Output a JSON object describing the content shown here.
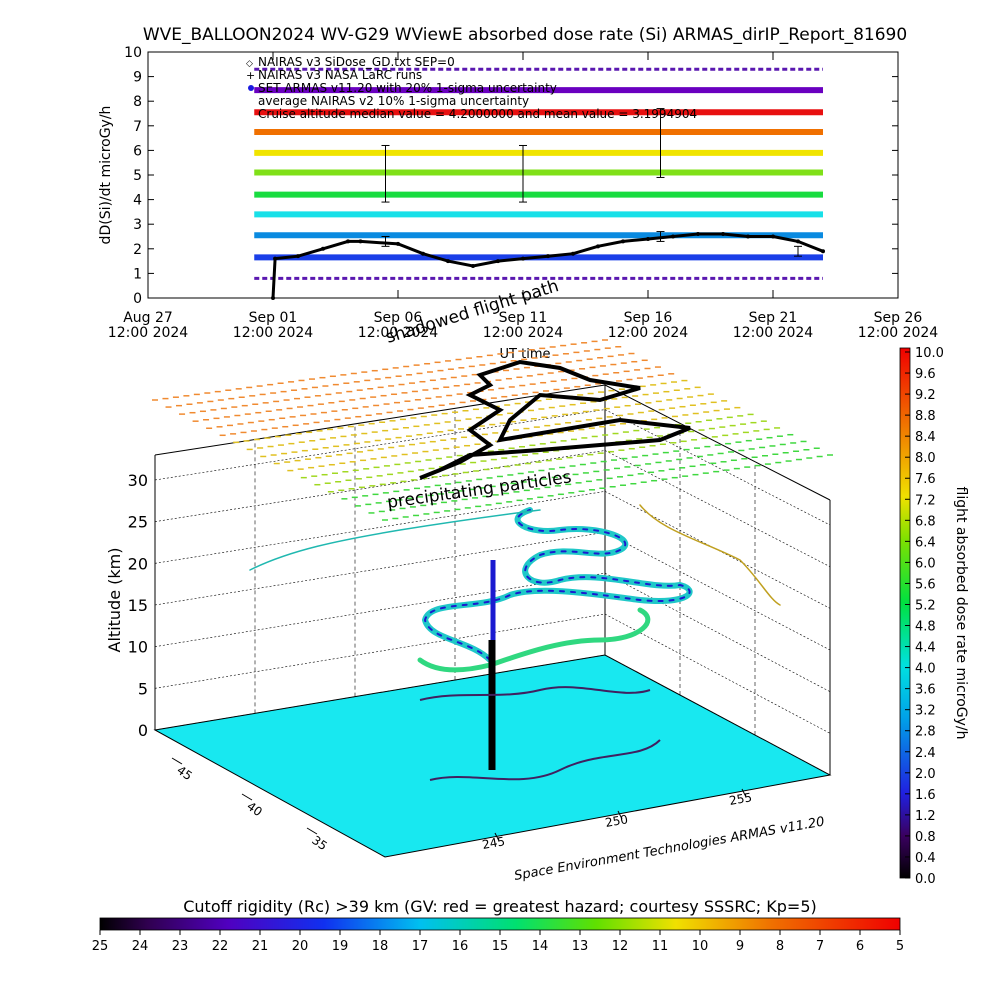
{
  "title": "WVE_BALLOON2024 WV-G29 WViewE absorbed dose rate (Si) ARMAS_dirIP_Report_81690",
  "timeseries": {
    "ylabel": "dD(Si)/dt microGy/h",
    "xlabel": "UT time",
    "ylim": [
      0,
      10
    ],
    "yticks": [
      "0",
      "1",
      "2",
      "3",
      "4",
      "5",
      "6",
      "7",
      "8",
      "9",
      "10"
    ],
    "xticks": [
      {
        "line1": "Aug 27",
        "line2": "12:00 2024"
      },
      {
        "line1": "Sep 01",
        "line2": "12:00 2024"
      },
      {
        "line1": "Sep 06",
        "line2": "12:00 2024"
      },
      {
        "line1": "Sep 11",
        "line2": "12:00 2024"
      },
      {
        "line1": "Sep 16",
        "line2": "12:00 2024"
      },
      {
        "line1": "Sep 21",
        "line2": "12:00 2024"
      },
      {
        "line1": "Sep 26",
        "line2": "12:00 2024"
      }
    ],
    "legend": [
      "NAIRAS v3 SiDose_GD.txt SEP=0",
      "NAIRAS v3 NASA LaRC runs",
      "SET ARMAS v11.20 with 20% 1-sigma uncertainty",
      "average NAIRAS v2 10% 1-sigma uncertainty",
      "Cruise altitude median value = 4.2000000 and mean value = 3.1994904"
    ],
    "colors": {
      "band_colors": [
        "#7a00c8",
        "#1a3fe8",
        "#0a8ae0",
        "#18e0e8",
        "#18dc40",
        "#80e018",
        "#f0e400",
        "#f07000",
        "#e81010",
        "#6a00c0"
      ],
      "dose_line": "#000000"
    }
  },
  "chart_data": {
    "type": "scatter",
    "title": "WVE_BALLOON2024 WV-G29 WViewE absorbed dose rate (Si) ARMAS_dirIP_Report_81690",
    "xlabel": "UT time",
    "ylabel": "dD(Si)/dt microGy/h",
    "ylim": [
      0,
      10
    ],
    "xlim": [
      "2024-08-27 12:00",
      "2024-09-26 12:00"
    ],
    "series": [
      {
        "name": "SET ARMAS v11.20 with 20% 1-sigma uncertainty",
        "x": [
          "2024-09-01 12:00",
          "2024-09-01 14:00",
          "2024-09-02 12:00",
          "2024-09-03 12:00",
          "2024-09-04 12:00",
          "2024-09-05 00:00",
          "2024-09-06 12:00",
          "2024-09-07 12:00",
          "2024-09-08 12:00",
          "2024-09-09 12:00",
          "2024-09-10 12:00",
          "2024-09-11 12:00",
          "2024-09-12 12:00",
          "2024-09-13 12:00",
          "2024-09-14 12:00",
          "2024-09-15 12:00",
          "2024-09-16 12:00",
          "2024-09-17 12:00",
          "2024-09-18 12:00",
          "2024-09-19 12:00",
          "2024-09-20 12:00",
          "2024-09-21 12:00",
          "2024-09-22 12:00",
          "2024-09-23 12:00"
        ],
        "y": [
          0.0,
          1.6,
          1.7,
          2.0,
          2.3,
          2.3,
          2.2,
          1.8,
          1.5,
          1.3,
          1.5,
          1.6,
          1.7,
          1.8,
          2.1,
          2.3,
          2.4,
          2.5,
          2.6,
          2.6,
          2.5,
          2.5,
          2.3,
          1.9
        ]
      }
    ],
    "bands": [
      0.8,
      1.65,
      2.55,
      3.4,
      4.2,
      5.1,
      5.9,
      6.75,
      7.55,
      8.45,
      9.3
    ],
    "error_bars": [
      {
        "x": "2024-09-06 00:00",
        "y": 5.1,
        "low": 3.9,
        "high": 6.2
      },
      {
        "x": "2024-09-11 12:00",
        "y": 5.1,
        "low": 3.9,
        "high": 6.2
      },
      {
        "x": "2024-09-17 00:00",
        "y": 6.3,
        "low": 4.9,
        "high": 7.7
      },
      {
        "x": "2024-09-06 00:00",
        "y": 2.3,
        "low": 2.1,
        "high": 2.5
      },
      {
        "x": "2024-09-17 00:00",
        "y": 2.5,
        "low": 2.3,
        "high": 2.7
      },
      {
        "x": "2024-09-22 12:00",
        "y": 1.9,
        "low": 1.7,
        "high": 2.1
      }
    ]
  },
  "globe": {
    "zlabel": "Altitude (km)",
    "zticks": [
      "0",
      "5",
      "10",
      "15",
      "20",
      "25",
      "30"
    ],
    "lat_ticks": [
      "45",
      "40",
      "35"
    ],
    "lon_ticks": [
      "245",
      "250",
      "255"
    ],
    "labels": {
      "shadowed_flight_path": "shadowed flight path",
      "precipitating_particles": "precipitating particles",
      "credit": "Space Environment Technologies ARMAS v11.20"
    },
    "colors": {
      "ground": "#18e8f0"
    }
  },
  "dose_colorbar": {
    "label": "flight absorbed dose rate microGy/h",
    "ticks": [
      "10.0",
      "9.6",
      "9.2",
      "8.8",
      "8.4",
      "8.0",
      "7.6",
      "7.2",
      "6.8",
      "6.4",
      "6.0",
      "5.6",
      "5.2",
      "4.8",
      "4.4",
      "4.0",
      "3.6",
      "3.2",
      "2.8",
      "2.4",
      "2.0",
      "1.6",
      "1.2",
      "0.8",
      "0.4",
      "0.0"
    ]
  },
  "cutoff_colorbar": {
    "label": "Cutoff rigidity (Rc) >39 km (GV: red = greatest hazard; courtesy SSSRC; Kp=5)",
    "ticks": [
      "25",
      "24",
      "23",
      "22",
      "21",
      "20",
      "19",
      "18",
      "17",
      "16",
      "15",
      "14",
      "13",
      "12",
      "11",
      "10",
      "9",
      "8",
      "7",
      "6",
      "5"
    ]
  }
}
